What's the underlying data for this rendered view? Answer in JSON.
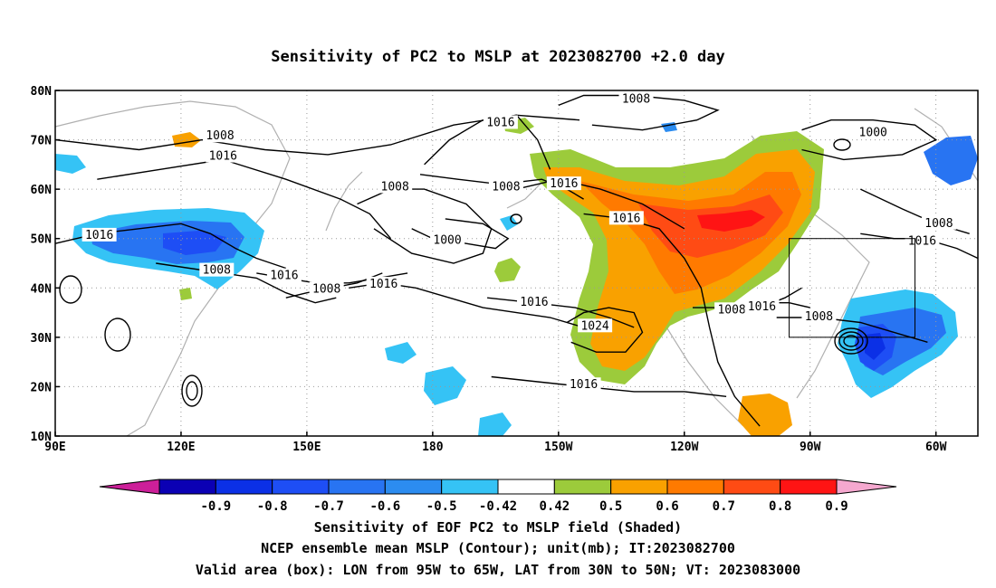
{
  "title": "Sensitivity of PC2 to MSLP at 2023082700 +2.0 day",
  "lon_labels": [
    "90E",
    "120E",
    "150E",
    "180",
    "150W",
    "120W",
    "90W",
    "60W"
  ],
  "lat_labels": [
    "80N",
    "70N",
    "60N",
    "50N",
    "40N",
    "30N",
    "20N",
    "10N"
  ],
  "extent": {
    "lon_min": 90,
    "lon_max": 310,
    "lat_min": 10,
    "lat_max": 80
  },
  "isobars": [
    {
      "text": "1008",
      "lon": 129.3,
      "lat": 70.8,
      "line": [
        [
          90,
          70
        ],
        [
          110,
          68
        ],
        [
          125,
          70
        ],
        [
          140,
          68
        ],
        [
          155,
          67
        ],
        [
          170,
          69
        ],
        [
          185,
          73
        ],
        [
          200,
          75
        ],
        [
          215,
          74
        ]
      ]
    },
    {
      "text": "1016",
      "lon": 130,
      "lat": 66.7,
      "line": [
        [
          100,
          62
        ],
        [
          115,
          64
        ],
        [
          130,
          66
        ],
        [
          145,
          62
        ],
        [
          158,
          58
        ],
        [
          165,
          55
        ],
        [
          170,
          50
        ]
      ]
    },
    {
      "text": "1016",
      "lon": 196.2,
      "lat": 73.5,
      "line": [
        [
          178,
          65
        ],
        [
          184,
          70
        ],
        [
          192,
          74
        ],
        [
          200,
          75
        ],
        [
          205,
          70
        ],
        [
          208,
          64
        ]
      ]
    },
    {
      "text": "1008",
      "lon": 228.5,
      "lat": 78.3,
      "line": [
        [
          210,
          77
        ],
        [
          216,
          79
        ],
        [
          228,
          79
        ],
        [
          240,
          78
        ],
        [
          248,
          76
        ],
        [
          243,
          74
        ],
        [
          230,
          72
        ],
        [
          218,
          73
        ]
      ]
    },
    {
      "text": "1000",
      "lon": 285,
      "lat": 71.5,
      "line": [
        [
          268,
          72
        ],
        [
          275,
          74
        ],
        [
          285,
          74
        ],
        [
          295,
          73
        ],
        [
          300,
          70
        ],
        [
          292,
          67
        ],
        [
          278,
          66
        ],
        [
          268,
          68
        ]
      ]
    },
    {
      "text": "1008",
      "lon": 197.5,
      "lat": 60.5,
      "line": [
        [
          177,
          63
        ],
        [
          186,
          62
        ],
        [
          196,
          61
        ],
        [
          206,
          62
        ],
        [
          212,
          60
        ],
        [
          216,
          58
        ]
      ]
    },
    {
      "text": "1016",
      "lon": 211.3,
      "lat": 61.1,
      "line": [
        [
          200,
          60
        ],
        [
          210,
          62
        ],
        [
          220,
          60
        ],
        [
          230,
          57
        ],
        [
          240,
          52
        ]
      ]
    },
    {
      "text": "1016",
      "lon": 226.2,
      "lat": 54.1,
      "line": [
        [
          216,
          55
        ],
        [
          226,
          54
        ],
        [
          234,
          52
        ],
        [
          240,
          46
        ],
        [
          244,
          40
        ],
        [
          246,
          32
        ],
        [
          248,
          25
        ],
        [
          252,
          18
        ],
        [
          258,
          12
        ]
      ]
    },
    {
      "text": "1008",
      "lon": 171,
      "lat": 60.5,
      "line": [
        [
          162,
          57
        ],
        [
          170,
          60
        ],
        [
          178,
          60
        ],
        [
          188,
          57
        ],
        [
          194,
          52
        ],
        [
          192,
          47
        ],
        [
          185,
          45
        ],
        [
          175,
          47
        ],
        [
          166,
          52
        ]
      ]
    },
    {
      "text": "1000",
      "lon": 183.5,
      "lat": 49.7,
      "line": [
        [
          175,
          52
        ],
        [
          180,
          50
        ],
        [
          188,
          49
        ],
        [
          195,
          48
        ],
        [
          198,
          50
        ],
        [
          192,
          53
        ],
        [
          183,
          54
        ]
      ]
    },
    {
      "text": "1016",
      "lon": 100.5,
      "lat": 50.7,
      "line": [
        [
          90,
          49
        ],
        [
          100,
          51
        ],
        [
          110,
          52
        ],
        [
          120,
          53
        ],
        [
          127,
          51
        ],
        [
          133,
          48
        ],
        [
          138,
          46
        ],
        [
          145,
          44
        ]
      ]
    },
    {
      "text": "1008",
      "lon": 128.5,
      "lat": 43.6,
      "line": [
        [
          114,
          45
        ],
        [
          122,
          44
        ],
        [
          130,
          43
        ],
        [
          138,
          42
        ],
        [
          145,
          39
        ],
        [
          152,
          37
        ],
        [
          157,
          38
        ]
      ]
    },
    {
      "text": "1016",
      "lon": 144.6,
      "lat": 42.5,
      "line": [
        [
          138,
          43
        ],
        [
          145,
          42
        ],
        [
          152,
          41
        ],
        [
          160,
          41
        ],
        [
          167,
          42
        ],
        [
          174,
          43
        ]
      ]
    },
    {
      "text": "1008",
      "lon": 154.7,
      "lat": 39.8,
      "line": [
        [
          145,
          38
        ],
        [
          150,
          39
        ],
        [
          156,
          40
        ],
        [
          162,
          41
        ],
        [
          168,
          43
        ]
      ]
    },
    {
      "text": "1016",
      "lon": 168.3,
      "lat": 40.8,
      "line": [
        [
          160,
          40
        ],
        [
          168,
          41
        ],
        [
          176,
          40
        ],
        [
          184,
          38
        ],
        [
          192,
          36
        ],
        [
          200,
          35
        ],
        [
          208,
          34
        ],
        [
          216,
          32
        ]
      ]
    },
    {
      "text": "1016",
      "lon": 204.2,
      "lat": 37.1,
      "line": [
        [
          193,
          38
        ],
        [
          204,
          37
        ],
        [
          214,
          36
        ],
        [
          222,
          34
        ],
        [
          228,
          32
        ]
      ]
    },
    {
      "text": "1024",
      "lon": 218.7,
      "lat": 32.3,
      "line": [
        [
          212,
          33
        ],
        [
          216,
          35
        ],
        [
          222,
          36
        ],
        [
          228,
          35
        ],
        [
          230,
          31
        ],
        [
          226,
          27
        ],
        [
          219,
          27
        ],
        [
          213,
          29
        ]
      ]
    },
    {
      "text": "1016",
      "lon": 216,
      "lat": 20.4,
      "line": [
        [
          194,
          22
        ],
        [
          205,
          21
        ],
        [
          216,
          20
        ],
        [
          228,
          19
        ],
        [
          240,
          19
        ],
        [
          250,
          18
        ]
      ]
    },
    {
      "text": "1008",
      "lon": 251.3,
      "lat": 35.6,
      "line": [
        [
          242,
          36
        ],
        [
          251,
          36
        ],
        [
          258,
          37
        ],
        [
          265,
          37
        ],
        [
          270,
          36
        ]
      ]
    },
    {
      "text": "1016",
      "lon": 258.5,
      "lat": 36.2,
      "line": [
        [
          252,
          35
        ],
        [
          258,
          36
        ],
        [
          264,
          38
        ],
        [
          268,
          40
        ]
      ]
    },
    {
      "text": "1008",
      "lon": 272.1,
      "lat": 34.2,
      "line": [
        [
          262,
          34
        ],
        [
          272,
          34
        ],
        [
          282,
          33
        ],
        [
          290,
          31
        ],
        [
          298,
          29
        ]
      ]
    },
    {
      "text": "1008",
      "lon": 300.7,
      "lat": 53.1,
      "line": [
        [
          282,
          60
        ],
        [
          292,
          56
        ],
        [
          300,
          53
        ],
        [
          308,
          51
        ]
      ]
    },
    {
      "text": "1016",
      "lon": 296.7,
      "lat": 49.5,
      "line": [
        [
          282,
          51
        ],
        [
          290,
          50
        ],
        [
          297,
          50
        ],
        [
          305,
          48
        ],
        [
          310,
          46
        ]
      ]
    }
  ],
  "box": {
    "lon_min": 265,
    "lon_max": 295,
    "lat_min": 30,
    "lat_max": 50
  },
  "colorbar": {
    "colors": [
      "#cc1f99",
      "#0b00b4",
      "#0b30e6",
      "#1e4ef5",
      "#2874f2",
      "#2c8cf0",
      "#35c3f5",
      "#ffffff",
      "#9ccb3b",
      "#f9a100",
      "#ff7a00",
      "#ff4b14",
      "#ff1414",
      "#f5a8cf"
    ],
    "labels": [
      "-0.9",
      "-0.8",
      "-0.7",
      "-0.6",
      "-0.5",
      "-0.42",
      "0.42",
      "0.5",
      "0.6",
      "0.7",
      "0.8",
      "0.9"
    ]
  },
  "captions": [
    "Sensitivity of EOF PC2 to MSLP field (Shaded)",
    "NCEP ensemble mean MSLP (Contour); unit(mb); IT:2023082700",
    "Valid area (box): LON from 95W to 65W, LAT from 30N to 50N; VT: 2023083000"
  ]
}
